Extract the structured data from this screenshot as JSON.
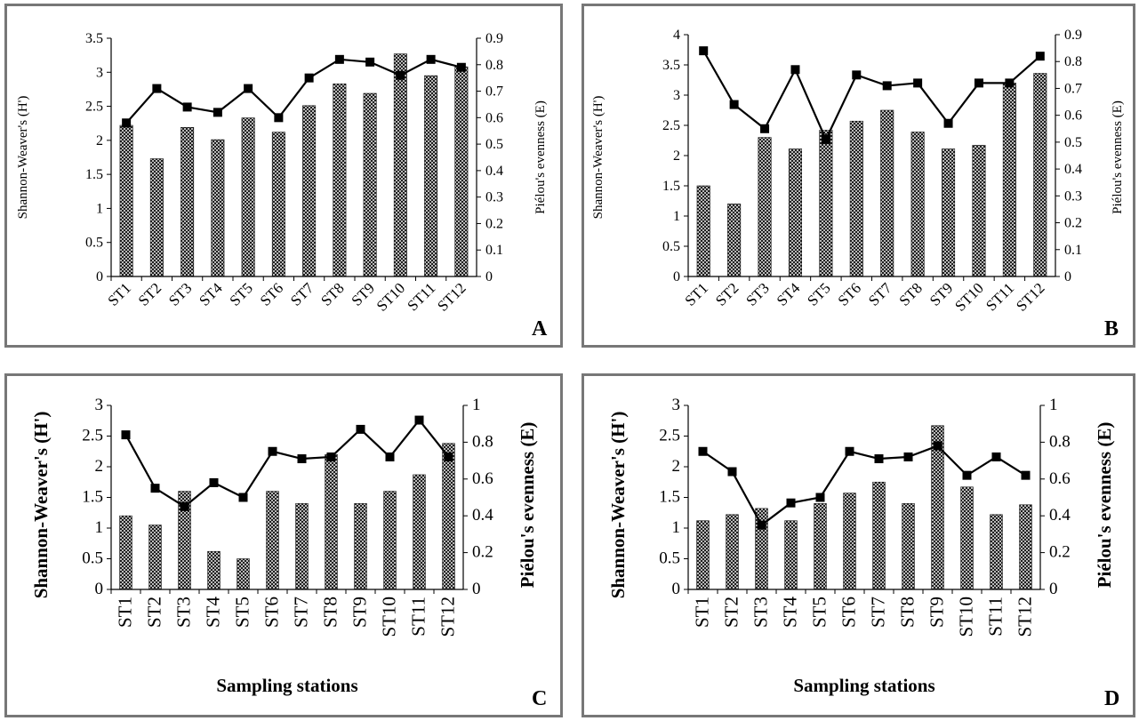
{
  "figure": {
    "colors": {
      "bar_fill": "#9a9a9a",
      "bar_stroke": "#111111",
      "line": "#000000",
      "axis": "#000000",
      "border": "#777777"
    }
  },
  "chart_data": [
    {
      "panel": "A",
      "type": "bar+line",
      "categories": [
        "ST1",
        "ST2",
        "ST3",
        "ST4",
        "ST5",
        "ST6",
        "ST7",
        "ST8",
        "ST9",
        "ST10",
        "ST11",
        "ST12"
      ],
      "series": [
        {
          "type": "bar",
          "axis": "left",
          "values": [
            2.22,
            1.73,
            2.19,
            2.01,
            2.33,
            2.12,
            2.51,
            2.83,
            2.69,
            3.27,
            2.95,
            3.08
          ]
        },
        {
          "type": "line",
          "axis": "right",
          "values": [
            0.58,
            0.71,
            0.64,
            0.62,
            0.71,
            0.6,
            0.75,
            0.82,
            0.81,
            0.76,
            0.82,
            0.79
          ]
        }
      ],
      "xlabel": "",
      "ylabel": "Shannon-Weaver's (H')",
      "y2label": "Piélou's evenness (E)",
      "ylim": [
        0,
        3.5
      ],
      "y2lim": [
        0,
        0.9
      ],
      "yticks": [
        "0",
        "0.5",
        "1",
        "1.5",
        "2",
        "2.5",
        "3",
        "3.5"
      ],
      "y2ticks": [
        "0",
        "0.1",
        "0.2",
        "0.3",
        "0.4",
        "0.5",
        "0.6",
        "0.7",
        "0.8",
        "0.9"
      ],
      "grid": false,
      "legend": "none"
    },
    {
      "panel": "B",
      "type": "bar+line",
      "categories": [
        "ST1",
        "ST2",
        "ST3",
        "ST4",
        "ST5",
        "ST6",
        "ST7",
        "ST8",
        "ST9",
        "ST10",
        "ST11",
        "ST12"
      ],
      "series": [
        {
          "type": "bar",
          "axis": "left",
          "values": [
            1.5,
            1.2,
            2.3,
            2.11,
            2.42,
            2.57,
            2.75,
            2.39,
            2.11,
            2.17,
            3.2,
            3.36
          ]
        },
        {
          "type": "line",
          "axis": "right",
          "values": [
            0.84,
            0.64,
            0.55,
            0.77,
            0.51,
            0.75,
            0.71,
            0.72,
            0.57,
            0.72,
            0.72,
            0.82
          ]
        }
      ],
      "xlabel": "",
      "ylabel": "Shannon-Weaver's (H')",
      "y2label": "Piélou's evenness (E)",
      "ylim": [
        0,
        4
      ],
      "y2lim": [
        0,
        0.9
      ],
      "yticks": [
        "0",
        "0.5",
        "1",
        "1.5",
        "2",
        "2.5",
        "3",
        "3.5",
        "4"
      ],
      "y2ticks": [
        "0",
        "0.1",
        "0.2",
        "0.3",
        "0.4",
        "0.5",
        "0.6",
        "0.7",
        "0.8",
        "0.9"
      ],
      "grid": false,
      "legend": "none"
    },
    {
      "panel": "C",
      "type": "bar+line",
      "categories": [
        "ST1",
        "ST2",
        "ST3",
        "ST4",
        "ST5",
        "ST6",
        "ST7",
        "ST8",
        "ST9",
        "ST10",
        "ST11",
        "ST12"
      ],
      "series": [
        {
          "type": "bar",
          "axis": "left",
          "values": [
            1.2,
            1.05,
            1.6,
            0.62,
            0.5,
            1.6,
            1.4,
            2.2,
            1.4,
            1.6,
            1.87,
            2.38
          ]
        },
        {
          "type": "line",
          "axis": "right",
          "values": [
            0.84,
            0.55,
            0.45,
            0.58,
            0.5,
            0.75,
            0.71,
            0.72,
            0.87,
            0.72,
            0.92,
            0.72
          ]
        }
      ],
      "xlabel": "Sampling stations",
      "ylabel": "Shannon-Weaver's (H')",
      "y2label": "Piélou's evenness (E)",
      "ylim": [
        0,
        3
      ],
      "y2lim": [
        0,
        1
      ],
      "yticks": [
        "0",
        "0.5",
        "1",
        "1.5",
        "2",
        "2.5",
        "3"
      ],
      "y2ticks": [
        "0",
        "0.2",
        "0.4",
        "0.6",
        "0.8",
        "1"
      ],
      "grid": false,
      "legend": "none"
    },
    {
      "panel": "D",
      "type": "bar+line",
      "categories": [
        "ST1",
        "ST2",
        "ST3",
        "ST4",
        "ST5",
        "ST6",
        "ST7",
        "ST8",
        "ST9",
        "ST10",
        "ST11",
        "ST12"
      ],
      "series": [
        {
          "type": "bar",
          "axis": "left",
          "values": [
            1.12,
            1.22,
            1.32,
            1.12,
            1.4,
            1.57,
            1.75,
            1.4,
            2.67,
            1.67,
            1.22,
            1.38
          ]
        },
        {
          "type": "line",
          "axis": "right",
          "values": [
            0.75,
            0.64,
            0.35,
            0.47,
            0.5,
            0.75,
            0.71,
            0.72,
            0.78,
            0.62,
            0.72,
            0.62
          ]
        }
      ],
      "xlabel": "Sampling stations",
      "ylabel": "Shannon-Weaver's (H')",
      "y2label": "Piélou's evenness (E)",
      "ylim": [
        0,
        3
      ],
      "y2lim": [
        0,
        1
      ],
      "yticks": [
        "0",
        "0.5",
        "1",
        "1.5",
        "2",
        "2.5",
        "3"
      ],
      "y2ticks": [
        "0",
        "0.2",
        "0.4",
        "0.6",
        "0.8",
        "1"
      ],
      "grid": false,
      "legend": "none"
    }
  ]
}
